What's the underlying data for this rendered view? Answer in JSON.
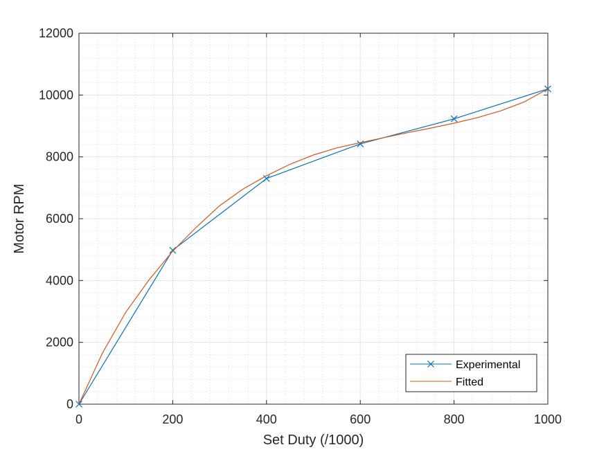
{
  "chart_data": {
    "type": "line",
    "title": "",
    "xlabel": "Set Duty (/1000)",
    "ylabel": "Motor RPM",
    "xlim": [
      0,
      1000
    ],
    "ylim": [
      0,
      12000
    ],
    "x_ticks": [
      "0",
      "200",
      "400",
      "600",
      "800",
      "1000"
    ],
    "y_ticks": [
      "0",
      "2000",
      "4000",
      "6000",
      "8000",
      "10000",
      "12000"
    ],
    "grid": true,
    "minor_grid": true,
    "legend_position": "bottom-right",
    "series": [
      {
        "name": "Experimental",
        "color": "#0072BD",
        "marker": "x",
        "x": [
          0,
          200,
          400,
          600,
          800,
          1000
        ],
        "y": [
          0,
          4980,
          7300,
          8420,
          9230,
          10200
        ]
      },
      {
        "name": "Fitted",
        "color": "#D95319",
        "marker": "none",
        "x": [
          0,
          50,
          100,
          150,
          200,
          250,
          300,
          350,
          400,
          450,
          500,
          550,
          600,
          650,
          700,
          750,
          800,
          850,
          900,
          950,
          1000
        ],
        "y": [
          0,
          1650,
          2980,
          4030,
          4950,
          5720,
          6420,
          6960,
          7390,
          7760,
          8060,
          8290,
          8460,
          8620,
          8780,
          8930,
          9090,
          9270,
          9490,
          9780,
          10200
        ]
      }
    ]
  }
}
